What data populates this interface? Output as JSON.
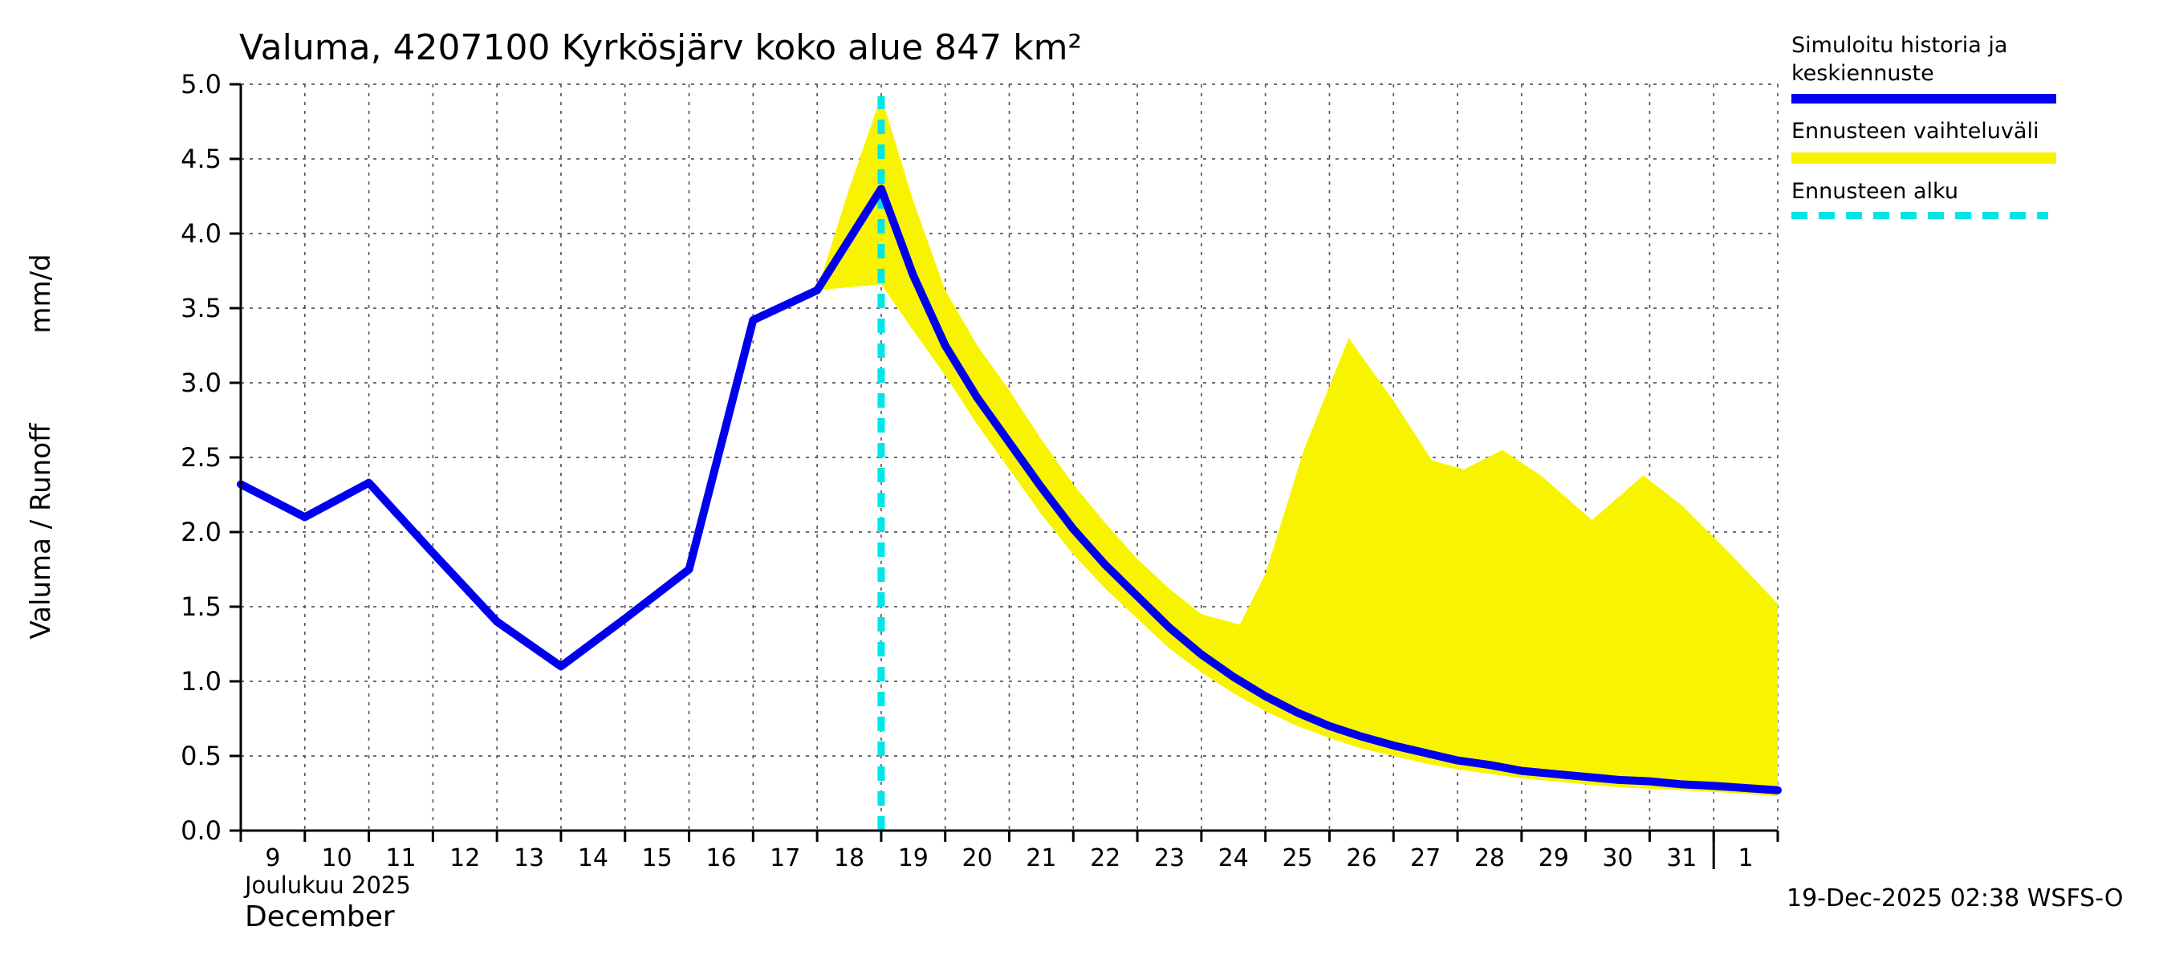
{
  "footer": {
    "timestamp": "19-Dec-2025 02:38 WSFS-O"
  },
  "legend": {
    "items": [
      {
        "label": "Simuloitu historia ja keskiennuste"
      },
      {
        "label": "Ennusteen vaihteluväli"
      },
      {
        "label": "Ennusteen alku"
      }
    ]
  },
  "chart_data": {
    "type": "line",
    "title": "Valuma, 4207100 Kyrkösjärv koko alue 847 km²",
    "ylabel_main": "Valuma / Runoff",
    "ylabel_unit": "mm/d",
    "x_month_label_fi": "Joulukuu 2025",
    "x_month_label_en": "December",
    "ylim": [
      0,
      5
    ],
    "y_ticks": [
      "0.0",
      "0.5",
      "1.0",
      "1.5",
      "2.0",
      "2.5",
      "3.0",
      "3.5",
      "4.0",
      "4.5",
      "5.0"
    ],
    "x_domain_days": [
      0,
      24
    ],
    "x_start_date": "9 December 2025",
    "x_tick_labels": [
      "9",
      "10",
      "11",
      "12",
      "13",
      "14",
      "15",
      "16",
      "17",
      "18",
      "19",
      "20",
      "21",
      "22",
      "23",
      "24",
      "25",
      "26",
      "27",
      "28",
      "29",
      "30",
      "31",
      "1"
    ],
    "month_separator_t": 23,
    "grid": true,
    "legend_position": "top-right",
    "series": [
      {
        "name": "Simuloitu historia ja keskiennuste",
        "color": "#0000ee",
        "points": [
          [
            0,
            2.32
          ],
          [
            1,
            2.1
          ],
          [
            2,
            2.33
          ],
          [
            3,
            1.86
          ],
          [
            4,
            1.4
          ],
          [
            5,
            1.1
          ],
          [
            6,
            1.42
          ],
          [
            7,
            1.75
          ],
          [
            8,
            3.42
          ],
          [
            9,
            3.62
          ],
          [
            10,
            4.3
          ],
          [
            10.5,
            3.72
          ],
          [
            11,
            3.25
          ],
          [
            11.5,
            2.9
          ],
          [
            12,
            2.6
          ],
          [
            12.5,
            2.3
          ],
          [
            13,
            2.02
          ],
          [
            13.5,
            1.78
          ],
          [
            14,
            1.57
          ],
          [
            14.5,
            1.36
          ],
          [
            15,
            1.18
          ],
          [
            15.5,
            1.03
          ],
          [
            16,
            0.9
          ],
          [
            16.5,
            0.79
          ],
          [
            17,
            0.7
          ],
          [
            17.5,
            0.63
          ],
          [
            18,
            0.57
          ],
          [
            18.5,
            0.52
          ],
          [
            19,
            0.47
          ],
          [
            19.5,
            0.44
          ],
          [
            20,
            0.4
          ],
          [
            20.5,
            0.38
          ],
          [
            21,
            0.36
          ],
          [
            21.5,
            0.34
          ],
          [
            22,
            0.33
          ],
          [
            22.5,
            0.31
          ],
          [
            23,
            0.3
          ],
          [
            23.5,
            0.285
          ],
          [
            24,
            0.27
          ]
        ]
      }
    ],
    "band": {
      "name": "Ennusteen vaihteluväli",
      "color": "#f8f400",
      "upper": [
        [
          9,
          3.62
        ],
        [
          9.5,
          4.3
        ],
        [
          10,
          4.92
        ],
        [
          10.5,
          4.22
        ],
        [
          11,
          3.62
        ],
        [
          11.5,
          3.25
        ],
        [
          12,
          2.95
        ],
        [
          12.5,
          2.62
        ],
        [
          13,
          2.32
        ],
        [
          13.5,
          2.06
        ],
        [
          14,
          1.82
        ],
        [
          14.5,
          1.62
        ],
        [
          15,
          1.45
        ],
        [
          15.6,
          1.38
        ],
        [
          16,
          1.72
        ],
        [
          16.6,
          2.55
        ],
        [
          17.3,
          3.3
        ],
        [
          18,
          2.88
        ],
        [
          18.6,
          2.48
        ],
        [
          19.1,
          2.42
        ],
        [
          19.7,
          2.55
        ],
        [
          20.3,
          2.38
        ],
        [
          21.1,
          2.08
        ],
        [
          21.9,
          2.38
        ],
        [
          22.5,
          2.18
        ],
        [
          23.2,
          1.88
        ],
        [
          24,
          1.52
        ]
      ],
      "lower": [
        [
          9,
          3.62
        ],
        [
          10,
          3.66
        ],
        [
          10.5,
          3.35
        ],
        [
          11,
          3.05
        ],
        [
          11.5,
          2.72
        ],
        [
          12,
          2.42
        ],
        [
          12.5,
          2.12
        ],
        [
          13,
          1.85
        ],
        [
          13.5,
          1.62
        ],
        [
          14,
          1.42
        ],
        [
          14.5,
          1.22
        ],
        [
          15,
          1.06
        ],
        [
          15.5,
          0.92
        ],
        [
          16,
          0.8
        ],
        [
          16.5,
          0.7
        ],
        [
          17,
          0.62
        ],
        [
          17.5,
          0.55
        ],
        [
          18,
          0.5
        ],
        [
          18.5,
          0.45
        ],
        [
          19,
          0.41
        ],
        [
          19.5,
          0.38
        ],
        [
          20,
          0.35
        ],
        [
          20.5,
          0.33
        ],
        [
          21,
          0.31
        ],
        [
          21.5,
          0.29
        ],
        [
          22,
          0.28
        ],
        [
          22.5,
          0.27
        ],
        [
          23,
          0.26
        ],
        [
          23.5,
          0.245
        ],
        [
          24,
          0.23
        ]
      ]
    },
    "forecast_start": {
      "name": "Ennusteen alku",
      "color": "#00e5e5",
      "t": 10,
      "top": 4.92
    }
  }
}
